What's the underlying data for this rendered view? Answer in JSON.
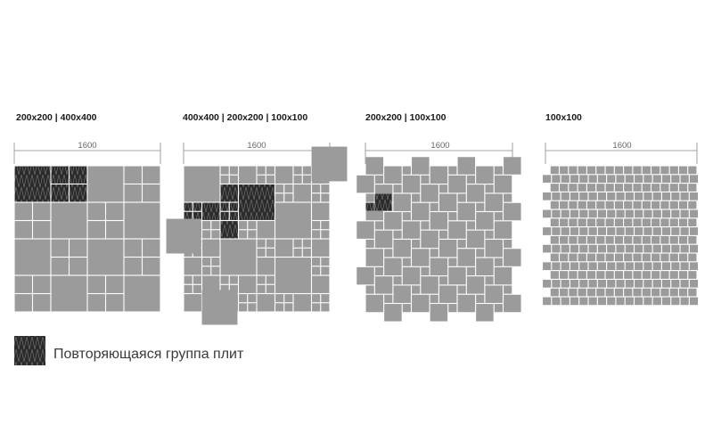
{
  "panels": [
    {
      "title": "200x200 | 400x400",
      "dimension": "1600",
      "pattern": "checker-400-200"
    },
    {
      "title": "400x400 | 200x200 | 100x100",
      "dimension": "1600",
      "pattern": "mixed-400-200-100"
    },
    {
      "title": "200x200 | 100x100",
      "dimension": "1600",
      "pattern": "pinwheel-200-100"
    },
    {
      "title": "100x100",
      "dimension": "1600",
      "pattern": "running-bond-100"
    }
  ],
  "legend": {
    "label": "Повторяющаяся группа плит",
    "icon": "repeating-group-swatch"
  },
  "colors": {
    "tile": "#9b9b9b",
    "repeat_group": "#2b2b2b",
    "grout": "#ffffff",
    "dimension_line": "#888888"
  }
}
